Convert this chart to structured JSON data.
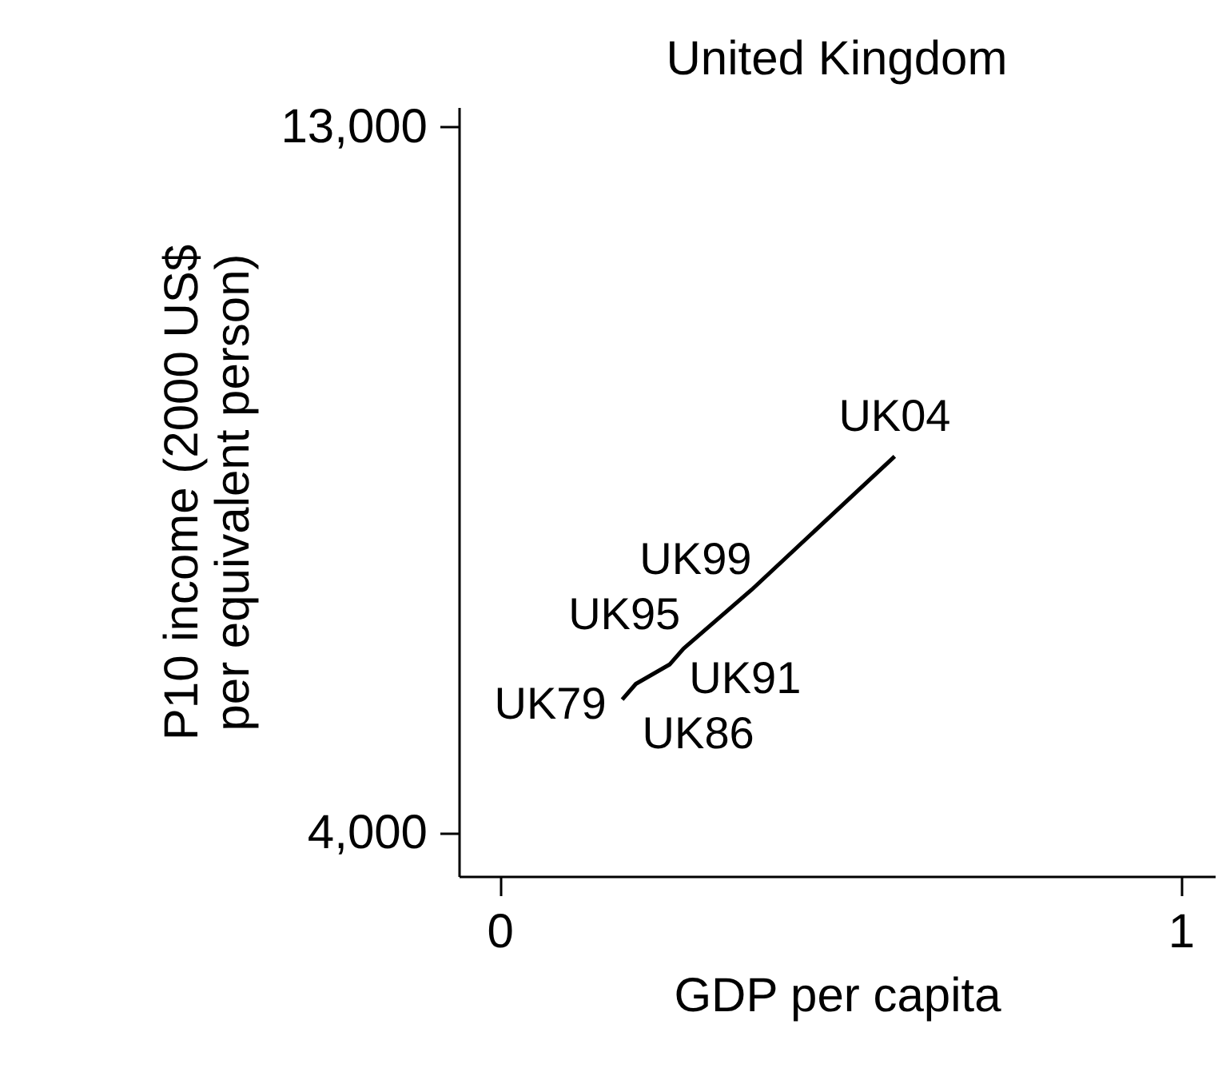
{
  "chart_data": {
    "type": "line",
    "title": "United Kingdom",
    "xlabel": "GDP per capita",
    "ylabel": "P10 income (2000 US$\nper equivalent person)",
    "x": [
      0.18,
      0.2,
      0.25,
      0.27,
      0.37,
      0.58
    ],
    "series": [
      {
        "color": "#000000",
        "values": [
          5700,
          5900,
          6150,
          6350,
          7100,
          8800
        ]
      }
    ],
    "annotations": [
      {
        "text": "UK79",
        "x": 0.18,
        "y": 5700
      },
      {
        "text": "UK86",
        "x": 0.2,
        "y": 5900
      },
      {
        "text": "UK91",
        "x": 0.25,
        "y": 6150
      },
      {
        "text": "UK95",
        "x": 0.27,
        "y": 6350
      },
      {
        "text": "UK99",
        "x": 0.37,
        "y": 7100
      },
      {
        "text": "UK04",
        "x": 0.58,
        "y": 8800
      }
    ],
    "xlim": [
      -0.06,
      1.05
    ],
    "ylim": [
      3450,
      13250
    ],
    "xticks": [
      0,
      1
    ],
    "yticks": [
      {
        "value": 4000,
        "label": "4,000"
      },
      {
        "value": 13000,
        "label": "13,000"
      }
    ],
    "grid": false,
    "marker": "none",
    "line_style": "solid"
  }
}
